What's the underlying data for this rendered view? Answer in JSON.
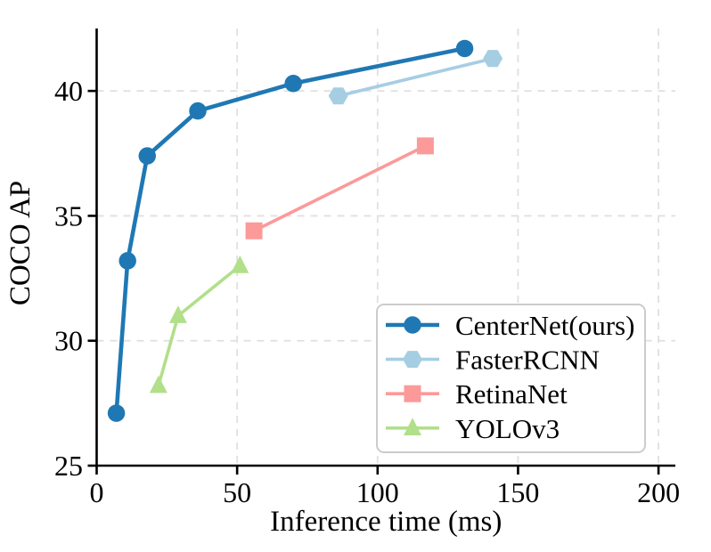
{
  "figure": {
    "description": "Accuracy vs speed comparison of object detectors on COCO",
    "background_color": "#ffffff"
  },
  "chart_data": {
    "type": "line",
    "title": "",
    "xlabel": "Inference time (ms)",
    "ylabel": "COCO AP",
    "xlim": [
      0,
      206
    ],
    "ylim": [
      25,
      42.5
    ],
    "xticks": [
      0,
      50,
      100,
      150,
      200
    ],
    "yticks": [
      25,
      30,
      35,
      40
    ],
    "grid": true,
    "grid_color": "#e0e0e0",
    "axis_color": "#000000",
    "legend_position": "lower right",
    "legend_border_color": "#cccccc",
    "legend_background": "#ffffff",
    "series": [
      {
        "name": "CenterNet(ours)",
        "color": "#1f78b4",
        "marker": "circle",
        "line_width": 4.6,
        "marker_size": 19.5,
        "points": [
          [
            7,
            27.1
          ],
          [
            11,
            33.2
          ],
          [
            18,
            37.4
          ],
          [
            36,
            39.2
          ],
          [
            70,
            40.3
          ],
          [
            131,
            41.7
          ]
        ]
      },
      {
        "name": "FasterRCNN",
        "color": "#a6cee3",
        "marker": "hexagon",
        "line_width": 3.6,
        "marker_size": 20,
        "points": [
          [
            86,
            39.8
          ],
          [
            141,
            41.3
          ]
        ]
      },
      {
        "name": "RetinaNet",
        "color": "#fb9a99",
        "marker": "square",
        "line_width": 3.6,
        "marker_size": 19,
        "points": [
          [
            56,
            34.4
          ],
          [
            117,
            37.8
          ]
        ]
      },
      {
        "name": "YOLOv3",
        "color": "#b2df8a",
        "marker": "triangle",
        "line_width": 3.6,
        "marker_size": 21,
        "points": [
          [
            22,
            28.2
          ],
          [
            29,
            31.0
          ],
          [
            51,
            33.0
          ]
        ]
      }
    ]
  }
}
